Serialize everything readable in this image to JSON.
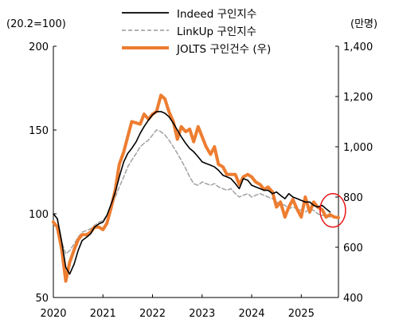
{
  "chart_data": {
    "type": "line",
    "left_axis_unit": "(20.2=100)",
    "right_axis_unit": "(만명)",
    "left_ylim": [
      50,
      200
    ],
    "left_yticks": [
      "50",
      "100",
      "150",
      "200"
    ],
    "right_ylim": [
      400,
      1400
    ],
    "right_yticks": [
      "400",
      "600",
      "800",
      "1,000",
      "1,200",
      "1,400"
    ],
    "xlim": [
      2020.0,
      2025.75
    ],
    "xticks": [
      "2020",
      "2021",
      "2022",
      "2023",
      "2024",
      "2025"
    ],
    "grid": false,
    "legend_position": "top",
    "colors": {
      "indeed": "#000000",
      "linkup": "#a6a6a6",
      "jolts": "#ed7d31",
      "marker": "#e81416"
    },
    "series": [
      {
        "name": "Indeed 구인지수",
        "axis": "left",
        "style": "solid",
        "points": [
          [
            2020.0,
            100
          ],
          [
            2020.08,
            97
          ],
          [
            2020.17,
            83
          ],
          [
            2020.25,
            68
          ],
          [
            2020.33,
            64
          ],
          [
            2020.42,
            70
          ],
          [
            2020.5,
            78
          ],
          [
            2020.58,
            84
          ],
          [
            2020.67,
            86
          ],
          [
            2020.75,
            88
          ],
          [
            2020.83,
            92
          ],
          [
            2020.92,
            94
          ],
          [
            2021.0,
            95
          ],
          [
            2021.08,
            99
          ],
          [
            2021.17,
            106
          ],
          [
            2021.25,
            113
          ],
          [
            2021.33,
            122
          ],
          [
            2021.42,
            131
          ],
          [
            2021.5,
            136
          ],
          [
            2021.58,
            139
          ],
          [
            2021.67,
            143
          ],
          [
            2021.75,
            148
          ],
          [
            2021.83,
            152
          ],
          [
            2021.92,
            156
          ],
          [
            2022.0,
            159
          ],
          [
            2022.08,
            161
          ],
          [
            2022.17,
            161
          ],
          [
            2022.25,
            160
          ],
          [
            2022.33,
            158
          ],
          [
            2022.42,
            154
          ],
          [
            2022.5,
            150
          ],
          [
            2022.58,
            146
          ],
          [
            2022.67,
            142
          ],
          [
            2022.75,
            139
          ],
          [
            2022.83,
            137
          ],
          [
            2022.92,
            134
          ],
          [
            2023.0,
            131
          ],
          [
            2023.08,
            130
          ],
          [
            2023.17,
            129
          ],
          [
            2023.25,
            128
          ],
          [
            2023.33,
            126
          ],
          [
            2023.42,
            123
          ],
          [
            2023.5,
            122
          ],
          [
            2023.58,
            121
          ],
          [
            2023.67,
            118
          ],
          [
            2023.75,
            115
          ],
          [
            2023.83,
            121
          ],
          [
            2023.92,
            120
          ],
          [
            2024.0,
            117
          ],
          [
            2024.08,
            116
          ],
          [
            2024.17,
            115
          ],
          [
            2024.25,
            114
          ],
          [
            2024.33,
            114
          ],
          [
            2024.42,
            112
          ],
          [
            2024.5,
            113
          ],
          [
            2024.58,
            111
          ],
          [
            2024.67,
            109
          ],
          [
            2024.75,
            112
          ],
          [
            2024.83,
            110
          ],
          [
            2024.92,
            109
          ],
          [
            2025.0,
            108
          ],
          [
            2025.08,
            107
          ],
          [
            2025.17,
            107
          ],
          [
            2025.25,
            105
          ],
          [
            2025.33,
            104
          ],
          [
            2025.42,
            105
          ],
          [
            2025.5,
            103
          ],
          [
            2025.58,
            101
          ]
        ]
      },
      {
        "name": "LinkUp 구인지수",
        "axis": "left",
        "style": "dashed",
        "points": [
          [
            2020.0,
            100
          ],
          [
            2020.08,
            97
          ],
          [
            2020.17,
            83
          ],
          [
            2020.25,
            76
          ],
          [
            2020.33,
            78
          ],
          [
            2020.42,
            82
          ],
          [
            2020.5,
            86
          ],
          [
            2020.58,
            89
          ],
          [
            2020.67,
            90
          ],
          [
            2020.75,
            91
          ],
          [
            2020.83,
            93
          ],
          [
            2020.92,
            95
          ],
          [
            2021.0,
            96
          ],
          [
            2021.08,
            99
          ],
          [
            2021.17,
            104
          ],
          [
            2021.25,
            110
          ],
          [
            2021.33,
            116
          ],
          [
            2021.42,
            122
          ],
          [
            2021.5,
            128
          ],
          [
            2021.58,
            132
          ],
          [
            2021.67,
            136
          ],
          [
            2021.75,
            140
          ],
          [
            2021.83,
            142
          ],
          [
            2021.92,
            144
          ],
          [
            2022.0,
            147
          ],
          [
            2022.08,
            150
          ],
          [
            2022.17,
            149
          ],
          [
            2022.25,
            147
          ],
          [
            2022.33,
            144
          ],
          [
            2022.42,
            140
          ],
          [
            2022.5,
            136
          ],
          [
            2022.58,
            132
          ],
          [
            2022.67,
            127
          ],
          [
            2022.75,
            122
          ],
          [
            2022.83,
            118
          ],
          [
            2022.92,
            117
          ],
          [
            2023.0,
            119
          ],
          [
            2023.08,
            118
          ],
          [
            2023.17,
            117
          ],
          [
            2023.25,
            118
          ],
          [
            2023.33,
            116
          ],
          [
            2023.42,
            115
          ],
          [
            2023.5,
            114
          ],
          [
            2023.58,
            115
          ],
          [
            2023.67,
            112
          ],
          [
            2023.75,
            110
          ],
          [
            2023.83,
            111
          ],
          [
            2023.92,
            112
          ],
          [
            2024.0,
            110
          ],
          [
            2024.08,
            111
          ],
          [
            2024.17,
            112
          ],
          [
            2024.25,
            111
          ],
          [
            2024.33,
            110
          ],
          [
            2024.42,
            109
          ],
          [
            2024.5,
            107
          ],
          [
            2024.58,
            106
          ],
          [
            2024.67,
            105
          ],
          [
            2024.75,
            103
          ],
          [
            2024.83,
            104
          ],
          [
            2024.92,
            103
          ],
          [
            2025.0,
            102
          ],
          [
            2025.08,
            101
          ],
          [
            2025.17,
            103
          ],
          [
            2025.25,
            102
          ],
          [
            2025.33,
            100
          ],
          [
            2025.42,
            99
          ],
          [
            2025.5,
            99
          ],
          [
            2025.58,
            98
          ]
        ]
      },
      {
        "name": "JOLTS 구인건수 (우)",
        "axis": "right",
        "style": "solid",
        "points": [
          [
            2020.0,
            700
          ],
          [
            2020.08,
            680
          ],
          [
            2020.17,
            590
          ],
          [
            2020.25,
            465
          ],
          [
            2020.33,
            540
          ],
          [
            2020.42,
            590
          ],
          [
            2020.5,
            630
          ],
          [
            2020.58,
            650
          ],
          [
            2020.67,
            650
          ],
          [
            2020.75,
            660
          ],
          [
            2020.83,
            680
          ],
          [
            2020.92,
            680
          ],
          [
            2021.0,
            670
          ],
          [
            2021.08,
            695
          ],
          [
            2021.17,
            760
          ],
          [
            2021.25,
            830
          ],
          [
            2021.33,
            930
          ],
          [
            2021.42,
            980
          ],
          [
            2021.5,
            1040
          ],
          [
            2021.58,
            1100
          ],
          [
            2021.67,
            1095
          ],
          [
            2021.75,
            1090
          ],
          [
            2021.83,
            1130
          ],
          [
            2021.92,
            1110
          ],
          [
            2022.0,
            1130
          ],
          [
            2022.08,
            1140
          ],
          [
            2022.17,
            1205
          ],
          [
            2022.25,
            1190
          ],
          [
            2022.33,
            1140
          ],
          [
            2022.42,
            1100
          ],
          [
            2022.5,
            1030
          ],
          [
            2022.58,
            1080
          ],
          [
            2022.67,
            1060
          ],
          [
            2022.75,
            1070
          ],
          [
            2022.83,
            1020
          ],
          [
            2022.92,
            1080
          ],
          [
            2023.0,
            1040
          ],
          [
            2023.08,
            1000
          ],
          [
            2023.17,
            970
          ],
          [
            2023.25,
            1000
          ],
          [
            2023.33,
            930
          ],
          [
            2023.42,
            920
          ],
          [
            2023.5,
            890
          ],
          [
            2023.58,
            890
          ],
          [
            2023.67,
            890
          ],
          [
            2023.75,
            850
          ],
          [
            2023.83,
            880
          ],
          [
            2023.92,
            890
          ],
          [
            2024.0,
            880
          ],
          [
            2024.08,
            860
          ],
          [
            2024.17,
            850
          ],
          [
            2024.25,
            830
          ],
          [
            2024.33,
            840
          ],
          [
            2024.42,
            820
          ],
          [
            2024.5,
            760
          ],
          [
            2024.58,
            780
          ],
          [
            2024.67,
            720
          ],
          [
            2024.75,
            760
          ],
          [
            2024.83,
            790
          ],
          [
            2024.92,
            750
          ],
          [
            2025.0,
            720
          ],
          [
            2025.08,
            800
          ],
          [
            2025.17,
            740
          ],
          [
            2025.25,
            780
          ],
          [
            2025.33,
            760
          ],
          [
            2025.42,
            750
          ],
          [
            2025.5,
            720
          ],
          [
            2025.58,
            730
          ],
          [
            2025.67,
            720
          ],
          [
            2025.75,
            718
          ]
        ]
      }
    ],
    "annotation": {
      "type": "circle",
      "color": "#e81416",
      "at_x": 2025.62,
      "at_left_y": 102
    }
  }
}
